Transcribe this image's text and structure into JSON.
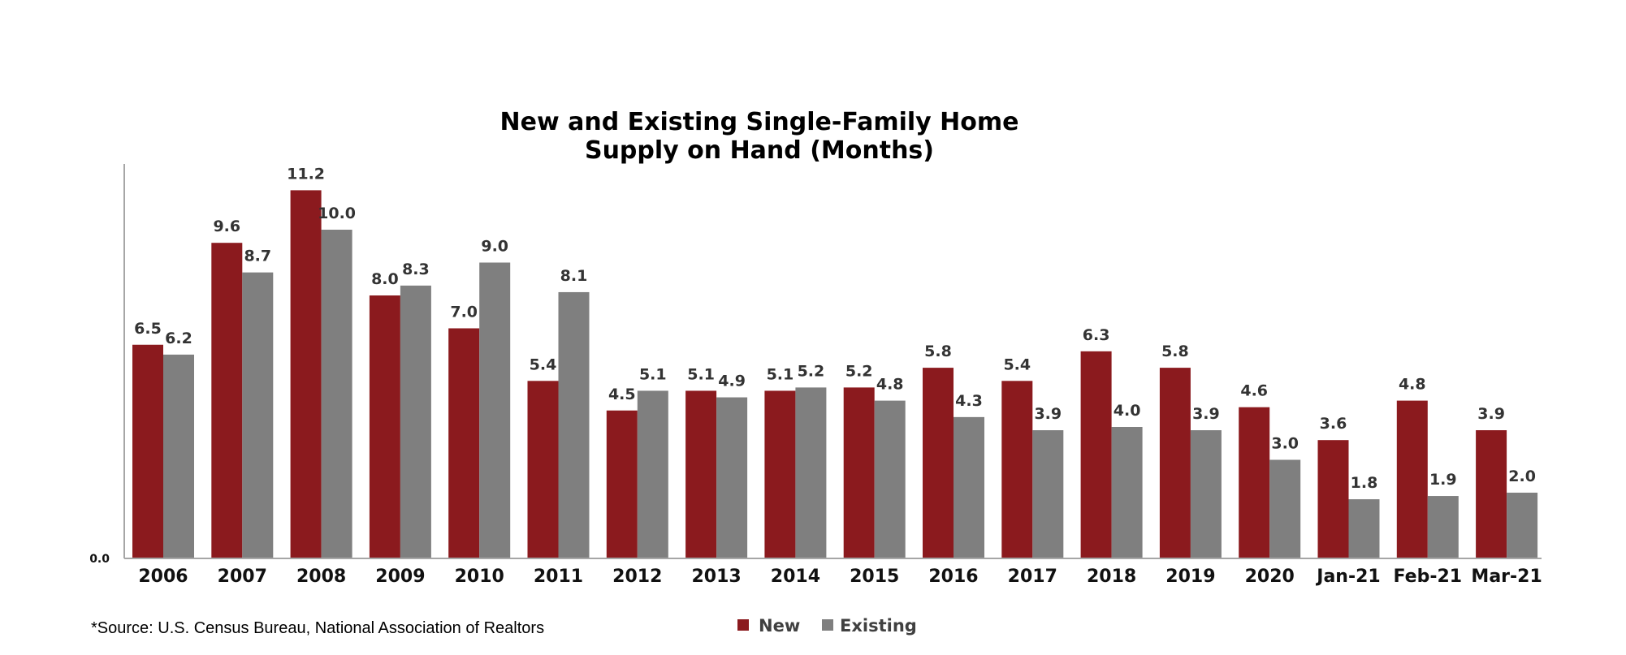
{
  "chart_data": {
    "type": "bar",
    "title_lines": [
      "New and Existing Single-Family Home",
      "Supply on Hand (Months)"
    ],
    "categories": [
      "2006",
      "2007",
      "2008",
      "2009",
      "2010",
      "2011",
      "2012",
      "2013",
      "2014",
      "2015",
      "2016",
      "2017",
      "2018",
      "2019",
      "2020",
      "Jan-21",
      "Feb-21",
      "Mar-21"
    ],
    "series": [
      {
        "name": "New",
        "color": "#8B1A1E",
        "values": [
          6.5,
          9.6,
          11.2,
          8.0,
          7.0,
          5.4,
          4.5,
          5.1,
          5.1,
          5.2,
          5.8,
          5.4,
          6.3,
          5.8,
          4.6,
          3.6,
          4.8,
          3.9
        ]
      },
      {
        "name": "Existing",
        "color": "#7F7F7F",
        "values": [
          6.2,
          8.7,
          10.0,
          8.3,
          9.0,
          8.1,
          5.1,
          4.9,
          5.2,
          4.8,
          4.3,
          3.9,
          4.0,
          3.9,
          3.0,
          1.8,
          1.9,
          2.0
        ]
      }
    ],
    "value_labels": {
      "New": [
        "6.5",
        "9.6",
        "11.2",
        "8.0",
        "7.0",
        "5.4",
        "4.5",
        "5.1",
        "5.1",
        "5.2",
        "5.8",
        "5.4",
        "6.3",
        "5.8",
        "4.6",
        "3.6",
        "4.8",
        "3.9"
      ],
      "Existing": [
        "6.2",
        "8.7",
        "10.0",
        "8.3",
        "9.0",
        "8.1",
        "5.1",
        "4.9",
        "5.2",
        "4.8",
        "4.3",
        "3.9",
        "4.0",
        "3.9",
        "3.0",
        "1.8",
        "1.9",
        "2.0"
      ]
    },
    "yticks": [
      "0.0"
    ],
    "ylim": [
      0,
      12
    ],
    "grid": false,
    "legend_position": "bottom"
  },
  "source_note": "*Source:  U.S. Census Bureau, National Association of Realtors"
}
